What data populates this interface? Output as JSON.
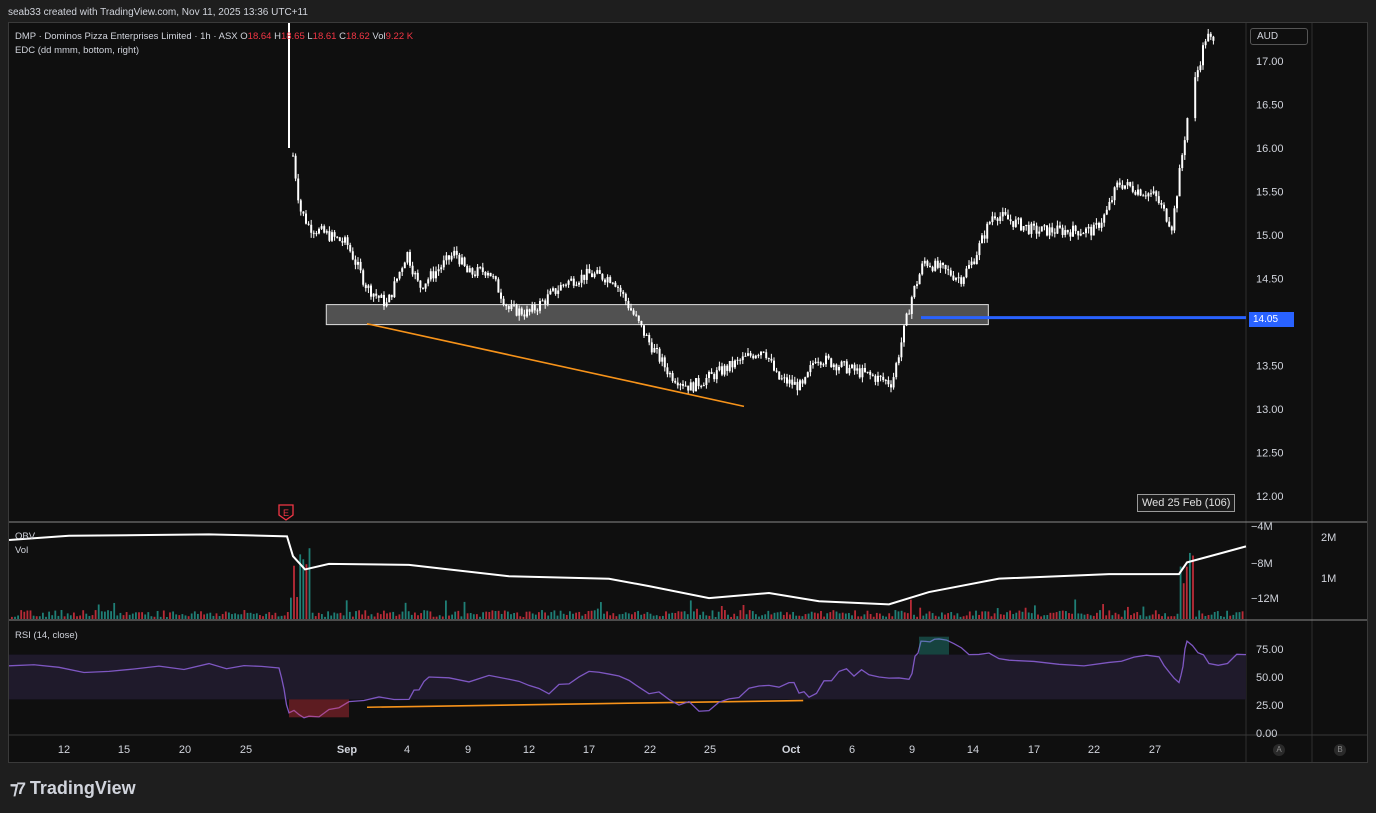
{
  "header": {
    "attribution": "seab33 created with TradingView.com, Nov 11, 2025 13:36 UTC+11"
  },
  "legend": {
    "symbol": "DMP · Dominos Pizza Enterprises Limited · 1h · ASX",
    "o_label": "O",
    "o_val": "18.64",
    "h_label": "H",
    "h_val": "18.65",
    "l_label": "L",
    "l_val": "18.61",
    "c_label": "C",
    "c_val": "18.62",
    "vol_label": "Vol",
    "vol_val": "9.22 K",
    "indicator": "EDC (dd mmm, bottom, right)"
  },
  "currency": "AUD",
  "price_tag": "14.05",
  "date_readout": "Wed 25 Feb (106)",
  "earnings_marker": "E",
  "obv_label": "OBV",
  "vol_label": "Vol",
  "rsi_label": "RSI (14, close)",
  "scale_buttons": {
    "a": "A",
    "b": "B"
  },
  "brand": "TradingView",
  "colors": {
    "background": "#0f0f0f",
    "candle": "#ffffff",
    "trendline": "#f7931a",
    "level_line": "#2962ff",
    "rsi_line": "#7e57c2",
    "volume_up": "#26a69a",
    "volume_down": "#f23645"
  },
  "chart_data": [
    {
      "type": "candlestick",
      "title": "",
      "x_ticks": [
        "12",
        "15",
        "20",
        "25",
        "Sep",
        "4",
        "9",
        "12",
        "17",
        "22",
        "25",
        "Oct",
        "6",
        "9",
        "14",
        "17",
        "22",
        "27"
      ],
      "y_ticks": [
        "17.00",
        "16.50",
        "16.00",
        "15.50",
        "15.00",
        "14.50",
        "13.50",
        "13.00",
        "12.50",
        "12.00"
      ],
      "ylim": [
        11.7,
        17.45
      ],
      "close_path": [
        {
          "x": "Aug 28",
          "y": 17.4
        },
        {
          "x": "Aug 28",
          "y": 16.0
        },
        {
          "x": "Aug 29",
          "y": 15.3
        },
        {
          "x": "Aug 29",
          "y": 15.1
        },
        {
          "x": "Sep 1",
          "y": 14.9
        },
        {
          "x": "Sep 2",
          "y": 14.4
        },
        {
          "x": "Sep 3",
          "y": 14.2
        },
        {
          "x": "Sep 4",
          "y": 14.8
        },
        {
          "x": "Sep 5",
          "y": 14.4
        },
        {
          "x": "Sep 8",
          "y": 14.8
        },
        {
          "x": "Sep 9",
          "y": 14.55
        },
        {
          "x": "Sep 10",
          "y": 14.6
        },
        {
          "x": "Sep 11",
          "y": 14.15
        },
        {
          "x": "Sep 12",
          "y": 14.1
        },
        {
          "x": "Sep 15",
          "y": 14.45
        },
        {
          "x": "Sep 17",
          "y": 14.55
        },
        {
          "x": "Sep 19",
          "y": 14.5
        },
        {
          "x": "Sep 22",
          "y": 13.75
        },
        {
          "x": "Sep 23",
          "y": 13.4
        },
        {
          "x": "Sep 24",
          "y": 13.25
        },
        {
          "x": "Sep 26",
          "y": 13.45
        },
        {
          "x": "Sep 29",
          "y": 13.7
        },
        {
          "x": "Sep 30",
          "y": 13.35
        },
        {
          "x": "Oct 2",
          "y": 13.25
        },
        {
          "x": "Oct 3",
          "y": 13.6
        },
        {
          "x": "Oct 6",
          "y": 13.45
        },
        {
          "x": "Oct 8",
          "y": 13.3
        },
        {
          "x": "Oct 9",
          "y": 14.3
        },
        {
          "x": "Oct 10",
          "y": 14.7
        },
        {
          "x": "Oct 13",
          "y": 14.5
        },
        {
          "x": "Oct 14",
          "y": 14.7
        },
        {
          "x": "Oct 15",
          "y": 15.25
        },
        {
          "x": "Oct 17",
          "y": 15.05
        },
        {
          "x": "Oct 22",
          "y": 15.05
        },
        {
          "x": "Oct 23",
          "y": 15.25
        },
        {
          "x": "Oct 24",
          "y": 15.6
        },
        {
          "x": "Oct 27",
          "y": 15.45
        },
        {
          "x": "Oct 28",
          "y": 15.1
        },
        {
          "x": "Oct 29",
          "y": 16.5
        },
        {
          "x": "Oct 30",
          "y": 17.3
        },
        {
          "x": "Oct 31",
          "y": 17.05
        }
      ],
      "zone": {
        "y_top": 14.2,
        "y_bottom": 13.97
      },
      "horizontal_level": 14.05,
      "trendline": {
        "from": {
          "x": "Sep 3",
          "y": 13.98
        },
        "to": {
          "x": "Sep 29",
          "y": 13.03
        }
      }
    },
    {
      "type": "line",
      "name": "OBV",
      "y_ticks": [
        "−4M",
        "−8M",
        "−12M"
      ],
      "volume_ticks": [
        "2M",
        "1M"
      ]
    },
    {
      "type": "line",
      "name": "RSI (14, close)",
      "y_ticks": [
        "75.00",
        "50.00",
        "25.00",
        "0.00"
      ],
      "ylim": [
        0,
        100
      ],
      "band": [
        30,
        70
      ],
      "trendline": {
        "from": {
          "x": "Sep 3",
          "y": 23
        },
        "to": {
          "x": "Oct 2",
          "y": 29
        }
      }
    }
  ]
}
